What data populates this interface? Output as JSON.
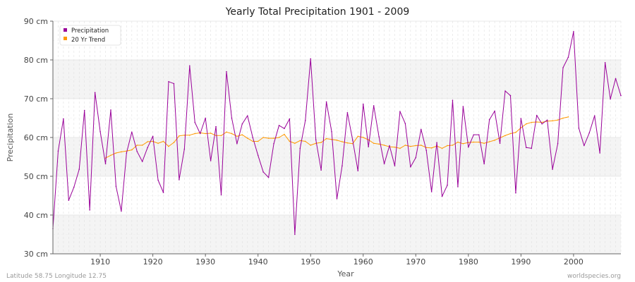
{
  "chart_data": {
    "type": "line",
    "title": "Yearly Total Precipitation 1901 - 2009",
    "xlabel": "Year",
    "ylabel": "Precipitation",
    "xlim": [
      1901,
      2009
    ],
    "ylim": [
      30,
      90
    ],
    "y_unit": "cm",
    "x_ticks": [
      "1910",
      "1920",
      "1930",
      "1940",
      "1950",
      "1960",
      "1970",
      "1980",
      "1990",
      "2000"
    ],
    "y_ticks": [
      "30 cm",
      "40 cm",
      "50 cm",
      "60 cm",
      "70 cm",
      "80 cm",
      "90 cm"
    ],
    "grid": true,
    "legend_position": "top-left",
    "series": [
      {
        "name": "Precipitation",
        "color": "#990099",
        "x": [
          1901,
          1902,
          1903,
          1904,
          1905,
          1906,
          1907,
          1908,
          1909,
          1910,
          1911,
          1912,
          1913,
          1914,
          1915,
          1916,
          1917,
          1918,
          1919,
          1920,
          1921,
          1922,
          1923,
          1924,
          1925,
          1926,
          1927,
          1928,
          1929,
          1930,
          1931,
          1932,
          1933,
          1934,
          1935,
          1936,
          1937,
          1938,
          1939,
          1940,
          1941,
          1942,
          1943,
          1944,
          1945,
          1946,
          1947,
          1948,
          1949,
          1950,
          1951,
          1952,
          1953,
          1954,
          1955,
          1956,
          1957,
          1958,
          1959,
          1960,
          1961,
          1962,
          1963,
          1964,
          1965,
          1966,
          1967,
          1968,
          1969,
          1970,
          1971,
          1972,
          1973,
          1974,
          1975,
          1976,
          1977,
          1978,
          1979,
          1980,
          1981,
          1982,
          1983,
          1984,
          1985,
          1986,
          1987,
          1988,
          1989,
          1990,
          1991,
          1992,
          1993,
          1994,
          1995,
          1996,
          1997,
          1998,
          1999,
          2000,
          2001,
          2002,
          2003,
          2004,
          2005,
          2006,
          2007,
          2008,
          2009
        ],
        "values": [
          36.5,
          56.5,
          64.8,
          43.8,
          47.2,
          51.8,
          67.0,
          41.3,
          71.6,
          61.5,
          53.2,
          67.1,
          47.4,
          41.0,
          56.0,
          61.4,
          56.4,
          53.8,
          57.4,
          60.3,
          49.0,
          45.8,
          74.4,
          73.9,
          49.1,
          57.0,
          78.5,
          63.9,
          61.0,
          65.0,
          54.0,
          62.8,
          45.2,
          77.0,
          65.0,
          58.4,
          63.5,
          65.6,
          60.0,
          55.4,
          51.1,
          49.7,
          58.4,
          63.1,
          62.3,
          64.8,
          35.0,
          57.2,
          64.4,
          80.3,
          59.4,
          51.6,
          69.2,
          61.5,
          44.2,
          52.7,
          66.4,
          59.3,
          51.4,
          68.6,
          57.6,
          68.2,
          60.2,
          53.2,
          57.9,
          52.7,
          66.7,
          63.6,
          52.4,
          54.8,
          62.1,
          56.7,
          46.0,
          58.7,
          44.8,
          47.7,
          69.6,
          47.3,
          68.0,
          57.5,
          60.7,
          60.7,
          53.2,
          64.6,
          66.8,
          58.5,
          72.0,
          70.8,
          45.7,
          64.9,
          57.4,
          57.2,
          65.7,
          63.5,
          64.5,
          51.8,
          58.4,
          78.0,
          80.7,
          87.3,
          62.4,
          57.9,
          61.2,
          65.6,
          56.0,
          79.3,
          69.9,
          75.2,
          70.8
        ]
      },
      {
        "name": "20 Yr Trend",
        "color": "#ff9900",
        "x": [
          1911,
          1912,
          1913,
          1914,
          1915,
          1916,
          1917,
          1918,
          1919,
          1920,
          1921,
          1922,
          1923,
          1924,
          1925,
          1926,
          1927,
          1928,
          1929,
          1930,
          1931,
          1932,
          1933,
          1934,
          1935,
          1936,
          1937,
          1938,
          1939,
          1940,
          1941,
          1942,
          1943,
          1944,
          1945,
          1946,
          1947,
          1948,
          1949,
          1950,
          1951,
          1952,
          1953,
          1954,
          1955,
          1956,
          1957,
          1958,
          1959,
          1960,
          1961,
          1962,
          1963,
          1964,
          1965,
          1966,
          1967,
          1968,
          1969,
          1970,
          1971,
          1972,
          1973,
          1974,
          1975,
          1976,
          1977,
          1978,
          1979,
          1980,
          1981,
          1982,
          1983,
          1984,
          1985,
          1986,
          1987,
          1988,
          1989,
          1990,
          1991,
          1992,
          1993,
          1994,
          1995,
          1996,
          1997,
          1998,
          1999
        ],
        "values": [
          54.7,
          55.4,
          56.0,
          56.3,
          56.5,
          56.8,
          58.0,
          58.0,
          58.9,
          59.0,
          58.5,
          59.0,
          57.7,
          58.7,
          60.4,
          60.6,
          60.6,
          61.0,
          61.2,
          61.0,
          61.1,
          60.5,
          60.5,
          61.4,
          61.0,
          60.3,
          60.7,
          59.8,
          59.0,
          59.0,
          60.0,
          59.8,
          59.8,
          60.0,
          60.8,
          59.0,
          58.5,
          59.2,
          59.0,
          58.0,
          58.5,
          58.7,
          59.7,
          59.5,
          59.3,
          58.9,
          58.6,
          58.4,
          60.3,
          60.0,
          59.4,
          58.5,
          58.3,
          58.0,
          57.6,
          57.5,
          57.2,
          58.0,
          57.7,
          57.9,
          58.0,
          57.4,
          57.3,
          57.8,
          57.2,
          57.9,
          58.0,
          58.8,
          58.4,
          58.7,
          58.8,
          58.8,
          58.5,
          58.9,
          59.3,
          59.9,
          60.5,
          61.0,
          61.3,
          62.5,
          63.5,
          63.9,
          64.0,
          63.9,
          64.2,
          64.3,
          64.5,
          65.0,
          65.3
        ]
      }
    ]
  },
  "footer": {
    "left": "Latitude 58.75 Longitude 12.75",
    "right": "worldspecies.org"
  }
}
